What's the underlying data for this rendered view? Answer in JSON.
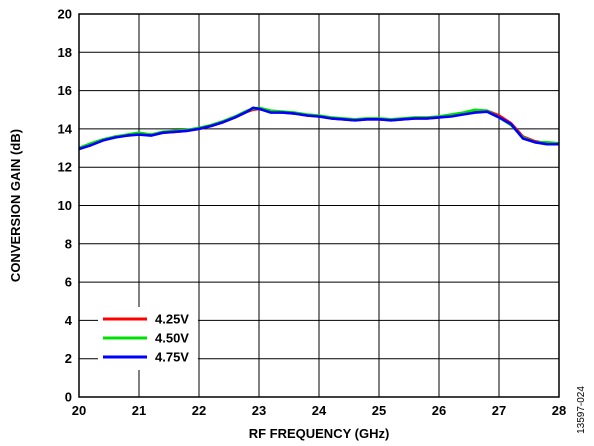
{
  "chart_data": {
    "type": "line",
    "xlabel": "RF FREQUENCY (GHz)",
    "ylabel": "CONVERSION GAIN (dB)",
    "xlim": [
      20,
      28
    ],
    "ylim": [
      0,
      20
    ],
    "xticks": [
      20,
      21,
      22,
      23,
      24,
      25,
      26,
      27,
      28
    ],
    "yticks": [
      0,
      2,
      4,
      6,
      8,
      10,
      12,
      14,
      16,
      18,
      20
    ],
    "grid": true,
    "legend_position": "bottom-left",
    "figure_id": "13597-024",
    "series": [
      {
        "name": "4.25V",
        "color": "#ff0000",
        "x": [
          20.0,
          20.2,
          20.4,
          20.6,
          20.8,
          21.0,
          21.2,
          21.4,
          21.6,
          21.8,
          22.0,
          22.2,
          22.4,
          22.6,
          22.8,
          22.9,
          23.0,
          23.2,
          23.4,
          23.6,
          23.8,
          24.0,
          24.2,
          24.4,
          24.6,
          24.8,
          25.0,
          25.2,
          25.4,
          25.6,
          25.8,
          26.0,
          26.2,
          26.4,
          26.6,
          26.8,
          27.0,
          27.2,
          27.4,
          27.6,
          27.8,
          28.0
        ],
        "y": [
          13.0,
          13.2,
          13.4,
          13.6,
          13.65,
          13.75,
          13.7,
          13.8,
          13.85,
          13.9,
          14.0,
          14.15,
          14.35,
          14.6,
          14.9,
          15.0,
          15.05,
          14.9,
          14.85,
          14.8,
          14.7,
          14.65,
          14.55,
          14.5,
          14.45,
          14.5,
          14.5,
          14.45,
          14.5,
          14.55,
          14.55,
          14.6,
          14.7,
          14.8,
          14.9,
          14.95,
          14.7,
          14.3,
          13.6,
          13.35,
          13.25,
          13.2
        ]
      },
      {
        "name": "4.50V",
        "color": "#00e000",
        "x": [
          20.0,
          20.2,
          20.4,
          20.6,
          20.8,
          21.0,
          21.2,
          21.4,
          21.6,
          21.8,
          22.0,
          22.2,
          22.4,
          22.6,
          22.8,
          22.9,
          23.0,
          23.2,
          23.4,
          23.6,
          23.8,
          24.0,
          24.2,
          24.4,
          24.6,
          24.8,
          25.0,
          25.2,
          25.4,
          25.6,
          25.8,
          26.0,
          26.2,
          26.4,
          26.6,
          26.8,
          27.0,
          27.2,
          27.4,
          27.6,
          27.8,
          28.0
        ],
        "y": [
          13.0,
          13.25,
          13.45,
          13.6,
          13.7,
          13.8,
          13.7,
          13.85,
          13.9,
          13.95,
          14.05,
          14.2,
          14.4,
          14.65,
          14.95,
          15.05,
          15.1,
          14.95,
          14.9,
          14.85,
          14.75,
          14.7,
          14.6,
          14.55,
          14.5,
          14.55,
          14.55,
          14.5,
          14.55,
          14.6,
          14.6,
          14.65,
          14.75,
          14.85,
          15.0,
          14.95,
          14.6,
          14.2,
          13.55,
          13.3,
          13.3,
          13.25
        ]
      },
      {
        "name": "4.75V",
        "color": "#0000ff",
        "x": [
          20.0,
          20.2,
          20.4,
          20.6,
          20.8,
          21.0,
          21.2,
          21.4,
          21.6,
          21.8,
          22.0,
          22.2,
          22.4,
          22.6,
          22.8,
          22.9,
          23.0,
          23.2,
          23.4,
          23.6,
          23.8,
          24.0,
          24.2,
          24.4,
          24.6,
          24.8,
          25.0,
          25.2,
          25.4,
          25.6,
          25.8,
          26.0,
          26.2,
          26.4,
          26.6,
          26.8,
          27.0,
          27.2,
          27.4,
          27.6,
          27.8,
          28.0
        ],
        "y": [
          12.95,
          13.15,
          13.4,
          13.55,
          13.65,
          13.7,
          13.65,
          13.8,
          13.85,
          13.9,
          14.0,
          14.15,
          14.35,
          14.6,
          14.9,
          15.1,
          15.05,
          14.85,
          14.85,
          14.8,
          14.7,
          14.65,
          14.55,
          14.5,
          14.45,
          14.5,
          14.5,
          14.45,
          14.5,
          14.55,
          14.55,
          14.6,
          14.65,
          14.75,
          14.85,
          14.9,
          14.6,
          14.25,
          13.5,
          13.3,
          13.2,
          13.2
        ]
      }
    ]
  }
}
